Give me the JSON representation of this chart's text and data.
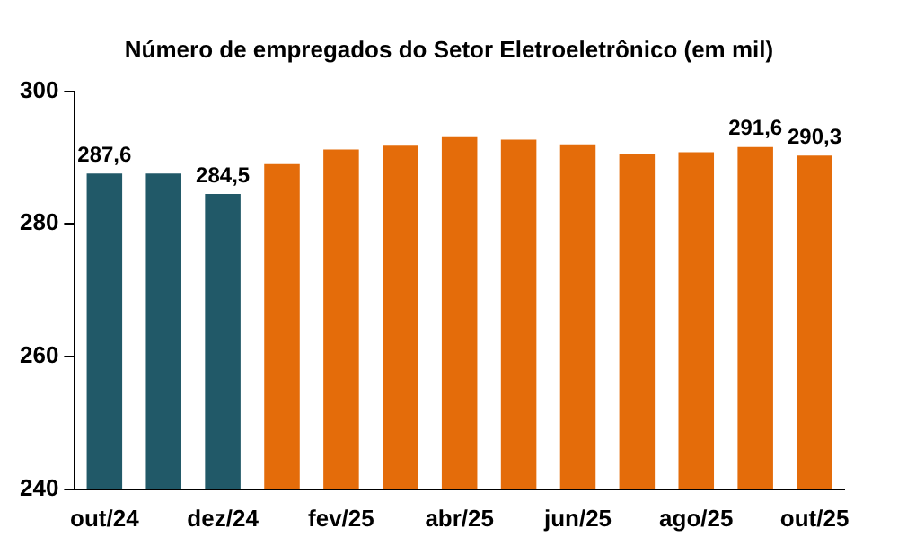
{
  "chart_data": {
    "type": "bar",
    "title": "Número de empregados do Setor Eletroeletrônico (em mil)",
    "categories": [
      "out/24",
      null,
      "dez/24",
      null,
      "fev/25",
      null,
      "abr/25",
      null,
      "jun/25",
      null,
      "ago/25",
      null,
      "out/25"
    ],
    "values": [
      287.6,
      287.6,
      284.5,
      289.0,
      291.2,
      291.8,
      293.2,
      292.7,
      292.0,
      290.6,
      290.8,
      291.6,
      290.3
    ],
    "colors": [
      "#215968",
      "#215968",
      "#215968",
      "#e46c0a",
      "#e46c0a",
      "#e46c0a",
      "#e46c0a",
      "#e46c0a",
      "#e46c0a",
      "#e46c0a",
      "#e46c0a",
      "#e46c0a",
      "#e46c0a"
    ],
    "value_labels": [
      "287,6",
      null,
      "284,5",
      null,
      null,
      null,
      null,
      null,
      null,
      null,
      null,
      "291,6",
      "290,3"
    ],
    "ylim": [
      240,
      300
    ],
    "yticks": [
      240,
      260,
      280,
      300
    ],
    "grid": false,
    "legend": false
  }
}
